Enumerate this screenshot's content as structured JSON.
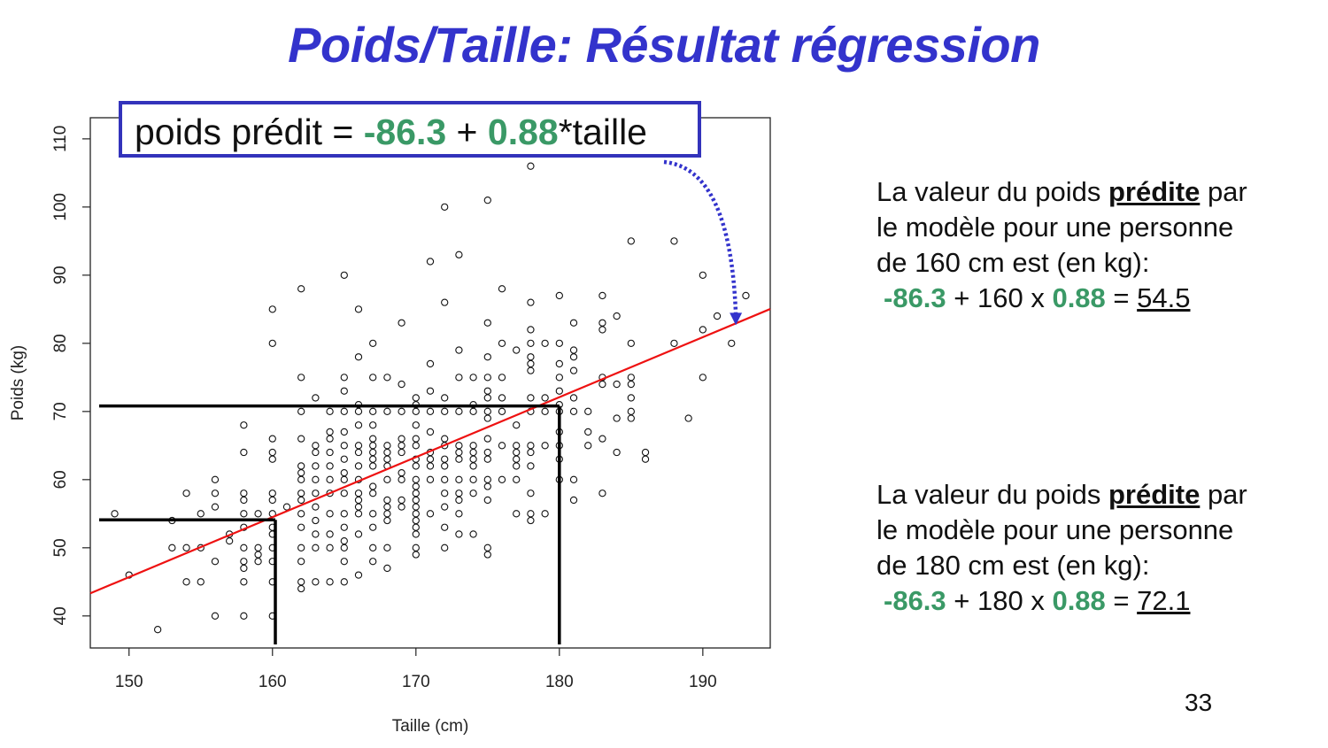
{
  "slide": {
    "title": "Poids/Taille: Résultat régression",
    "page_number": "33"
  },
  "equation": {
    "prefix": "poids prédit = ",
    "intercept": "-86.3",
    "plus": " + ",
    "slope": "0.88",
    "suffix": "*taille"
  },
  "notes": [
    {
      "line1_pre": "La valeur du poids ",
      "line1_bold": "prédite",
      "line1_post": " par",
      "line2": "le modèle pour une personne",
      "line3": "de 160 cm est (en kg):",
      "calc_intercept": "-86.3",
      "calc_mid": " + 160 x ",
      "calc_slope": "0.88",
      "calc_eq": " = ",
      "calc_result": "54.5"
    },
    {
      "line1_pre": "La valeur du poids ",
      "line1_bold": "prédite",
      "line1_post": " par",
      "line2": "le modèle pour une personne",
      "line3": "de 180 cm est (en kg):",
      "calc_intercept": "-86.3",
      "calc_mid": " + 180 x ",
      "calc_slope": "0.88",
      "calc_eq": " = ",
      "calc_result": "72.1"
    }
  ],
  "colors": {
    "title": "#3333cc",
    "accent_green": "#3a9966",
    "regression_line": "#ee1111",
    "arrow": "#3333cc"
  },
  "chart_data": {
    "type": "scatter",
    "xlabel": "Taille (cm)",
    "ylabel": "Poids (kg)",
    "xlim": [
      147.3,
      194.7
    ],
    "ylim": [
      35.3,
      113.1
    ],
    "x_ticks": [
      150,
      160,
      170,
      180,
      190
    ],
    "y_ticks": [
      40,
      50,
      60,
      70,
      80,
      90,
      100,
      110
    ],
    "grid": false,
    "regression": {
      "intercept": -86.3,
      "slope": 0.88
    },
    "guides": [
      {
        "x": 160.2,
        "y": 54.1
      },
      {
        "x": 180,
        "y": 70.8
      }
    ],
    "points": [
      [
        149,
        55
      ],
      [
        150,
        46
      ],
      [
        152,
        38
      ],
      [
        153,
        50
      ],
      [
        153,
        54
      ],
      [
        154,
        45
      ],
      [
        154,
        50
      ],
      [
        154,
        58
      ],
      [
        155,
        45
      ],
      [
        155,
        50
      ],
      [
        155,
        55
      ],
      [
        156,
        40
      ],
      [
        156,
        48
      ],
      [
        156,
        56
      ],
      [
        156,
        58
      ],
      [
        156,
        60
      ],
      [
        157,
        51
      ],
      [
        157,
        52
      ],
      [
        158,
        40
      ],
      [
        158,
        45
      ],
      [
        158,
        47
      ],
      [
        158,
        48
      ],
      [
        158,
        50
      ],
      [
        158,
        53
      ],
      [
        158,
        55
      ],
      [
        158,
        57
      ],
      [
        158,
        58
      ],
      [
        158,
        64
      ],
      [
        158,
        68
      ],
      [
        159,
        48
      ],
      [
        159,
        49
      ],
      [
        159,
        50
      ],
      [
        159,
        55
      ],
      [
        160,
        40
      ],
      [
        160,
        45
      ],
      [
        160,
        48
      ],
      [
        160,
        50
      ],
      [
        160,
        52
      ],
      [
        160,
        53
      ],
      [
        160,
        55
      ],
      [
        160,
        57
      ],
      [
        160,
        58
      ],
      [
        160,
        63
      ],
      [
        160,
        64
      ],
      [
        160,
        66
      ],
      [
        160,
        80
      ],
      [
        160,
        85
      ],
      [
        161,
        56
      ],
      [
        162,
        44
      ],
      [
        162,
        45
      ],
      [
        162,
        48
      ],
      [
        162,
        50
      ],
      [
        162,
        53
      ],
      [
        162,
        55
      ],
      [
        162,
        57
      ],
      [
        162,
        58
      ],
      [
        162,
        60
      ],
      [
        162,
        61
      ],
      [
        162,
        62
      ],
      [
        162,
        66
      ],
      [
        162,
        70
      ],
      [
        162,
        75
      ],
      [
        162,
        88
      ],
      [
        163,
        45
      ],
      [
        163,
        50
      ],
      [
        163,
        52
      ],
      [
        163,
        54
      ],
      [
        163,
        56
      ],
      [
        163,
        58
      ],
      [
        163,
        60
      ],
      [
        163,
        62
      ],
      [
        163,
        64
      ],
      [
        163,
        65
      ],
      [
        163,
        72
      ],
      [
        164,
        45
      ],
      [
        164,
        50
      ],
      [
        164,
        52
      ],
      [
        164,
        55
      ],
      [
        164,
        58
      ],
      [
        164,
        60
      ],
      [
        164,
        62
      ],
      [
        164,
        64
      ],
      [
        164,
        66
      ],
      [
        164,
        67
      ],
      [
        164,
        70
      ],
      [
        165,
        45
      ],
      [
        165,
        48
      ],
      [
        165,
        50
      ],
      [
        165,
        51
      ],
      [
        165,
        53
      ],
      [
        165,
        55
      ],
      [
        165,
        58
      ],
      [
        165,
        60
      ],
      [
        165,
        61
      ],
      [
        165,
        63
      ],
      [
        165,
        65
      ],
      [
        165,
        67
      ],
      [
        165,
        70
      ],
      [
        165,
        73
      ],
      [
        165,
        75
      ],
      [
        165,
        90
      ],
      [
        166,
        46
      ],
      [
        166,
        52
      ],
      [
        166,
        55
      ],
      [
        166,
        56
      ],
      [
        166,
        57
      ],
      [
        166,
        58
      ],
      [
        166,
        60
      ],
      [
        166,
        62
      ],
      [
        166,
        64
      ],
      [
        166,
        65
      ],
      [
        166,
        68
      ],
      [
        166,
        70
      ],
      [
        166,
        71
      ],
      [
        166,
        78
      ],
      [
        166,
        85
      ],
      [
        167,
        48
      ],
      [
        167,
        50
      ],
      [
        167,
        53
      ],
      [
        167,
        55
      ],
      [
        167,
        58
      ],
      [
        167,
        59
      ],
      [
        167,
        62
      ],
      [
        167,
        63
      ],
      [
        167,
        64
      ],
      [
        167,
        65
      ],
      [
        167,
        66
      ],
      [
        167,
        68
      ],
      [
        167,
        70
      ],
      [
        167,
        75
      ],
      [
        167,
        80
      ],
      [
        168,
        47
      ],
      [
        168,
        50
      ],
      [
        168,
        54
      ],
      [
        168,
        55
      ],
      [
        168,
        56
      ],
      [
        168,
        57
      ],
      [
        168,
        60
      ],
      [
        168,
        62
      ],
      [
        168,
        63
      ],
      [
        168,
        64
      ],
      [
        168,
        65
      ],
      [
        168,
        70
      ],
      [
        168,
        75
      ],
      [
        169,
        56
      ],
      [
        169,
        57
      ],
      [
        169,
        60
      ],
      [
        169,
        61
      ],
      [
        169,
        64
      ],
      [
        169,
        65
      ],
      [
        169,
        66
      ],
      [
        169,
        70
      ],
      [
        169,
        74
      ],
      [
        169,
        83
      ],
      [
        170,
        49
      ],
      [
        170,
        50
      ],
      [
        170,
        52
      ],
      [
        170,
        53
      ],
      [
        170,
        54
      ],
      [
        170,
        55
      ],
      [
        170,
        56
      ],
      [
        170,
        57
      ],
      [
        170,
        58
      ],
      [
        170,
        59
      ],
      [
        170,
        60
      ],
      [
        170,
        62
      ],
      [
        170,
        63
      ],
      [
        170,
        65
      ],
      [
        170,
        66
      ],
      [
        170,
        68
      ],
      [
        170,
        70
      ],
      [
        170,
        71
      ],
      [
        170,
        72
      ],
      [
        171,
        55
      ],
      [
        171,
        60
      ],
      [
        171,
        62
      ],
      [
        171,
        63
      ],
      [
        171,
        64
      ],
      [
        171,
        67
      ],
      [
        171,
        70
      ],
      [
        171,
        73
      ],
      [
        171,
        77
      ],
      [
        171,
        92
      ],
      [
        172,
        50
      ],
      [
        172,
        53
      ],
      [
        172,
        56
      ],
      [
        172,
        58
      ],
      [
        172,
        60
      ],
      [
        172,
        62
      ],
      [
        172,
        63
      ],
      [
        172,
        65
      ],
      [
        172,
        66
      ],
      [
        172,
        70
      ],
      [
        172,
        72
      ],
      [
        172,
        86
      ],
      [
        172,
        100
      ],
      [
        173,
        52
      ],
      [
        173,
        55
      ],
      [
        173,
        57
      ],
      [
        173,
        58
      ],
      [
        173,
        60
      ],
      [
        173,
        63
      ],
      [
        173,
        64
      ],
      [
        173,
        65
      ],
      [
        173,
        70
      ],
      [
        173,
        75
      ],
      [
        173,
        79
      ],
      [
        173,
        93
      ],
      [
        174,
        52
      ],
      [
        174,
        58
      ],
      [
        174,
        60
      ],
      [
        174,
        62
      ],
      [
        174,
        63
      ],
      [
        174,
        64
      ],
      [
        174,
        65
      ],
      [
        174,
        70
      ],
      [
        174,
        71
      ],
      [
        174,
        75
      ],
      [
        175,
        49
      ],
      [
        175,
        50
      ],
      [
        175,
        57
      ],
      [
        175,
        59
      ],
      [
        175,
        60
      ],
      [
        175,
        63
      ],
      [
        175,
        64
      ],
      [
        175,
        66
      ],
      [
        175,
        69
      ],
      [
        175,
        70
      ],
      [
        175,
        72
      ],
      [
        175,
        73
      ],
      [
        175,
        75
      ],
      [
        175,
        78
      ],
      [
        175,
        83
      ],
      [
        175,
        101
      ],
      [
        176,
        60
      ],
      [
        176,
        65
      ],
      [
        176,
        70
      ],
      [
        176,
        72
      ],
      [
        176,
        75
      ],
      [
        176,
        80
      ],
      [
        176,
        88
      ],
      [
        177,
        55
      ],
      [
        177,
        60
      ],
      [
        177,
        62
      ],
      [
        177,
        63
      ],
      [
        177,
        64
      ],
      [
        177,
        65
      ],
      [
        177,
        68
      ],
      [
        177,
        79
      ],
      [
        178,
        54
      ],
      [
        178,
        55
      ],
      [
        178,
        58
      ],
      [
        178,
        62
      ],
      [
        178,
        64
      ],
      [
        178,
        65
      ],
      [
        178,
        70
      ],
      [
        178,
        72
      ],
      [
        178,
        76
      ],
      [
        178,
        77
      ],
      [
        178,
        78
      ],
      [
        178,
        80
      ],
      [
        178,
        82
      ],
      [
        178,
        86
      ],
      [
        178,
        106
      ],
      [
        179,
        55
      ],
      [
        179,
        65
      ],
      [
        179,
        70
      ],
      [
        179,
        72
      ],
      [
        179,
        80
      ],
      [
        180,
        60
      ],
      [
        180,
        63
      ],
      [
        180,
        65
      ],
      [
        180,
        67
      ],
      [
        180,
        70
      ],
      [
        180,
        71
      ],
      [
        180,
        73
      ],
      [
        180,
        75
      ],
      [
        180,
        77
      ],
      [
        180,
        80
      ],
      [
        180,
        87
      ],
      [
        181,
        57
      ],
      [
        181,
        60
      ],
      [
        181,
        70
      ],
      [
        181,
        72
      ],
      [
        181,
        76
      ],
      [
        181,
        78
      ],
      [
        181,
        79
      ],
      [
        181,
        83
      ],
      [
        182,
        65
      ],
      [
        182,
        67
      ],
      [
        182,
        70
      ],
      [
        183,
        58
      ],
      [
        183,
        66
      ],
      [
        183,
        74
      ],
      [
        183,
        75
      ],
      [
        183,
        82
      ],
      [
        183,
        83
      ],
      [
        183,
        87
      ],
      [
        184,
        64
      ],
      [
        184,
        69
      ],
      [
        184,
        74
      ],
      [
        184,
        84
      ],
      [
        185,
        69
      ],
      [
        185,
        70
      ],
      [
        185,
        72
      ],
      [
        185,
        74
      ],
      [
        185,
        75
      ],
      [
        185,
        80
      ],
      [
        185,
        95
      ],
      [
        186,
        63
      ],
      [
        186,
        64
      ],
      [
        188,
        80
      ],
      [
        188,
        95
      ],
      [
        189,
        69
      ],
      [
        190,
        75
      ],
      [
        190,
        82
      ],
      [
        190,
        90
      ],
      [
        191,
        84
      ],
      [
        192,
        80
      ],
      [
        193,
        87
      ]
    ]
  }
}
